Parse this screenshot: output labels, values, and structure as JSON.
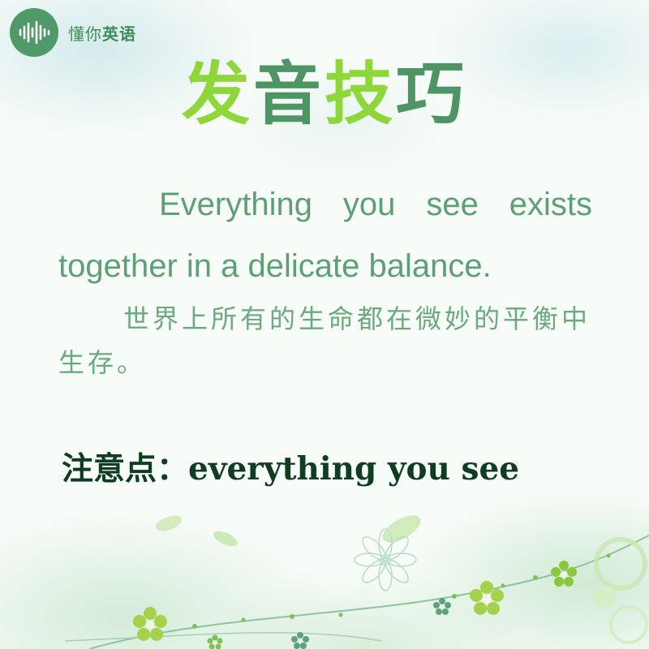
{
  "logo": {
    "text_a": "懂你",
    "text_b": "英语"
  },
  "title": {
    "chars": [
      "发",
      "音",
      "技",
      "巧"
    ]
  },
  "english_sentence": "Everything you see exists together in a delicate balance.",
  "chinese_translation": "世界上所有的生命都在微妙的平衡中生存。",
  "note": "注意点：everything you see",
  "colors": {
    "brand_green": "#4f9a68",
    "title_light": "#8fd63a",
    "title_dark": "#4e9464",
    "body_text": "#5ea076",
    "note_text": "#0f3d22"
  }
}
